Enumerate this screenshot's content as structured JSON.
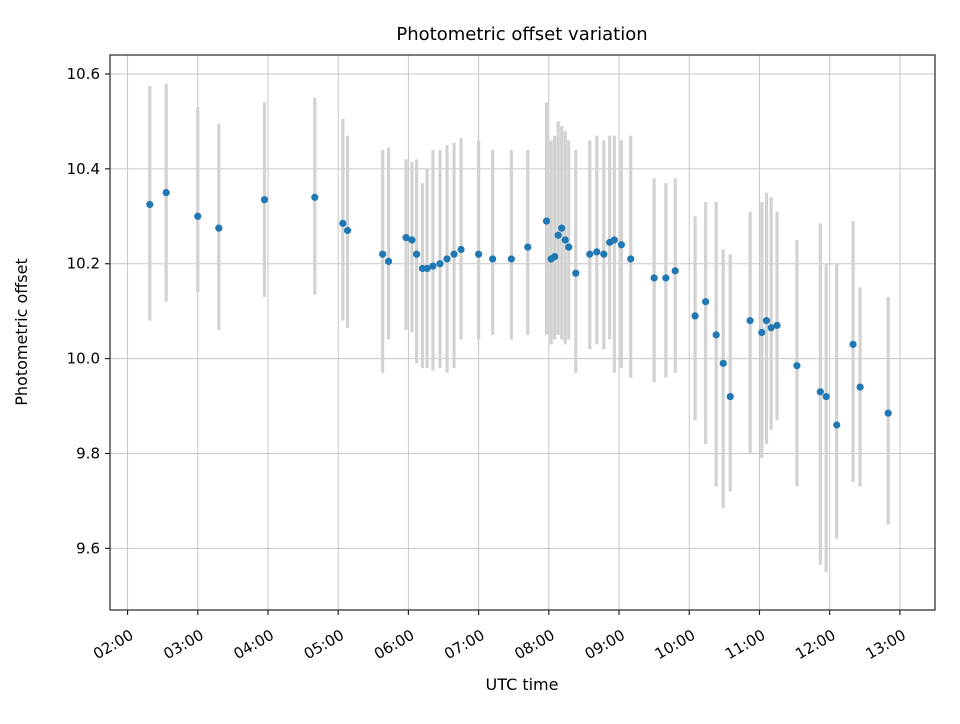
{
  "chart_data": {
    "type": "scatter",
    "title": "Photometric offset variation",
    "xlabel": "UTC time",
    "ylabel": "Photometric offset",
    "x_ticks": [
      "02:00",
      "03:00",
      "04:00",
      "05:00",
      "06:00",
      "07:00",
      "08:00",
      "09:00",
      "10:00",
      "11:00",
      "12:00",
      "13:00"
    ],
    "y_ticks": [
      9.6,
      9.8,
      10.0,
      10.2,
      10.4,
      10.6
    ],
    "xlim_hours": [
      1.75,
      13.5
    ],
    "ylim": [
      9.47,
      10.64
    ],
    "grid": true,
    "legend": "none",
    "grid_color": "#c6c6c6",
    "errorbar_color": "#d2d2d2",
    "point_color": "#1f77b4",
    "spine_color": "#262626",
    "points": [
      {
        "t": "02:19",
        "y": 10.325,
        "lo": 10.08,
        "hi": 10.575
      },
      {
        "t": "02:33",
        "y": 10.35,
        "lo": 10.12,
        "hi": 10.58
      },
      {
        "t": "03:00",
        "y": 10.3,
        "lo": 10.14,
        "hi": 10.53
      },
      {
        "t": "03:18",
        "y": 10.275,
        "lo": 10.06,
        "hi": 10.495
      },
      {
        "t": "03:57",
        "y": 10.335,
        "lo": 10.13,
        "hi": 10.54
      },
      {
        "t": "04:40",
        "y": 10.34,
        "lo": 10.135,
        "hi": 10.55
      },
      {
        "t": "05:04",
        "y": 10.285,
        "lo": 10.08,
        "hi": 10.505
      },
      {
        "t": "05:08",
        "y": 10.27,
        "lo": 10.065,
        "hi": 10.47
      },
      {
        "t": "05:38",
        "y": 10.22,
        "lo": 9.97,
        "hi": 10.44
      },
      {
        "t": "05:43",
        "y": 10.205,
        "lo": 10.04,
        "hi": 10.445
      },
      {
        "t": "05:58",
        "y": 10.255,
        "lo": 10.06,
        "hi": 10.42
      },
      {
        "t": "06:03",
        "y": 10.25,
        "lo": 10.055,
        "hi": 10.415
      },
      {
        "t": "06:07",
        "y": 10.22,
        "lo": 9.99,
        "hi": 10.42
      },
      {
        "t": "06:12",
        "y": 10.19,
        "lo": 9.98,
        "hi": 10.37
      },
      {
        "t": "06:16",
        "y": 10.19,
        "lo": 9.98,
        "hi": 10.4
      },
      {
        "t": "06:21",
        "y": 10.195,
        "lo": 9.975,
        "hi": 10.44
      },
      {
        "t": "06:27",
        "y": 10.2,
        "lo": 9.98,
        "hi": 10.44
      },
      {
        "t": "06:33",
        "y": 10.21,
        "lo": 9.97,
        "hi": 10.45
      },
      {
        "t": "06:39",
        "y": 10.22,
        "lo": 9.98,
        "hi": 10.455
      },
      {
        "t": "06:45",
        "y": 10.23,
        "lo": 10.04,
        "hi": 10.465
      },
      {
        "t": "07:00",
        "y": 10.22,
        "lo": 10.04,
        "hi": 10.46
      },
      {
        "t": "07:12",
        "y": 10.21,
        "lo": 10.05,
        "hi": 10.44
      },
      {
        "t": "07:28",
        "y": 10.21,
        "lo": 10.04,
        "hi": 10.44
      },
      {
        "t": "07:42",
        "y": 10.235,
        "lo": 10.05,
        "hi": 10.44
      },
      {
        "t": "07:58",
        "y": 10.29,
        "lo": 10.05,
        "hi": 10.54
      },
      {
        "t": "08:02",
        "y": 10.21,
        "lo": 10.03,
        "hi": 10.46
      },
      {
        "t": "08:05",
        "y": 10.215,
        "lo": 10.04,
        "hi": 10.47
      },
      {
        "t": "08:08",
        "y": 10.26,
        "lo": 10.05,
        "hi": 10.5
      },
      {
        "t": "08:11",
        "y": 10.275,
        "lo": 10.04,
        "hi": 10.49
      },
      {
        "t": "08:14",
        "y": 10.25,
        "lo": 10.03,
        "hi": 10.48
      },
      {
        "t": "08:17",
        "y": 10.235,
        "lo": 10.04,
        "hi": 10.46
      },
      {
        "t": "08:23",
        "y": 10.18,
        "lo": 9.97,
        "hi": 10.44
      },
      {
        "t": "08:35",
        "y": 10.22,
        "lo": 10.02,
        "hi": 10.46
      },
      {
        "t": "08:41",
        "y": 10.225,
        "lo": 10.03,
        "hi": 10.47
      },
      {
        "t": "08:47",
        "y": 10.22,
        "lo": 10.02,
        "hi": 10.46
      },
      {
        "t": "08:52",
        "y": 10.245,
        "lo": 10.04,
        "hi": 10.47
      },
      {
        "t": "08:56",
        "y": 10.25,
        "lo": 9.97,
        "hi": 10.47
      },
      {
        "t": "09:02",
        "y": 10.24,
        "lo": 9.98,
        "hi": 10.46
      },
      {
        "t": "09:10",
        "y": 10.21,
        "lo": 9.96,
        "hi": 10.47
      },
      {
        "t": "09:30",
        "y": 10.17,
        "lo": 9.95,
        "hi": 10.38
      },
      {
        "t": "09:40",
        "y": 10.17,
        "lo": 9.96,
        "hi": 10.37
      },
      {
        "t": "09:48",
        "y": 10.185,
        "lo": 9.97,
        "hi": 10.38
      },
      {
        "t": "10:05",
        "y": 10.09,
        "lo": 9.87,
        "hi": 10.3
      },
      {
        "t": "10:14",
        "y": 10.12,
        "lo": 9.82,
        "hi": 10.33
      },
      {
        "t": "10:23",
        "y": 10.05,
        "lo": 9.73,
        "hi": 10.33
      },
      {
        "t": "10:29",
        "y": 9.99,
        "lo": 9.685,
        "hi": 10.23
      },
      {
        "t": "10:35",
        "y": 9.92,
        "lo": 9.72,
        "hi": 10.22
      },
      {
        "t": "10:52",
        "y": 10.08,
        "lo": 9.8,
        "hi": 10.31
      },
      {
        "t": "11:02",
        "y": 10.055,
        "lo": 9.79,
        "hi": 10.33
      },
      {
        "t": "11:06",
        "y": 10.08,
        "lo": 9.82,
        "hi": 10.35
      },
      {
        "t": "11:10",
        "y": 10.065,
        "lo": 9.85,
        "hi": 10.34
      },
      {
        "t": "11:15",
        "y": 10.07,
        "lo": 9.87,
        "hi": 10.31
      },
      {
        "t": "11:32",
        "y": 9.985,
        "lo": 9.73,
        "hi": 10.25
      },
      {
        "t": "11:52",
        "y": 9.93,
        "lo": 9.565,
        "hi": 10.285
      },
      {
        "t": "11:57",
        "y": 9.92,
        "lo": 9.55,
        "hi": 10.2
      },
      {
        "t": "12:06",
        "y": 9.86,
        "lo": 9.62,
        "hi": 10.2
      },
      {
        "t": "12:20",
        "y": 10.03,
        "lo": 9.74,
        "hi": 10.29
      },
      {
        "t": "12:26",
        "y": 9.94,
        "lo": 9.73,
        "hi": 10.15
      },
      {
        "t": "12:50",
        "y": 9.885,
        "lo": 9.65,
        "hi": 10.13
      }
    ]
  }
}
